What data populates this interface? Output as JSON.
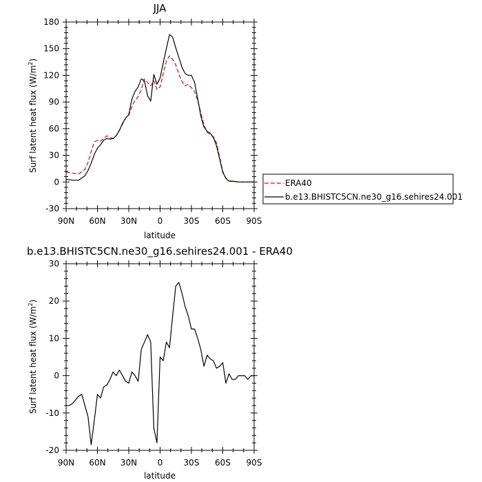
{
  "chart_data": [
    {
      "type": "line",
      "title": "JJA",
      "xlabel": "latitude",
      "ylabel_main": "Surf latent heat flux (W/m",
      "ylabel_sup": "2",
      "ylabel_tail": ")",
      "xlim": [
        90,
        -90
      ],
      "ylim": [
        -30,
        180
      ],
      "xticks": [
        90,
        60,
        30,
        0,
        -30,
        -60,
        -90
      ],
      "xtick_labels": [
        "90N",
        "60N",
        "30N",
        "0",
        "30S",
        "60S",
        "90S"
      ],
      "yticks": [
        -30,
        0,
        30,
        60,
        90,
        120,
        150,
        180
      ],
      "ytick_labels": [
        "-30",
        "0",
        "30",
        "60",
        "90",
        "120",
        "150",
        "180"
      ],
      "legend_position": "right",
      "series": [
        {
          "name": "ERA40",
          "color": "#ff0000",
          "dash": true,
          "x": [
            90,
            84,
            78,
            72,
            69,
            66,
            63,
            60,
            57,
            54,
            51,
            48,
            45,
            42,
            39,
            36,
            33,
            30,
            27,
            24,
            21,
            18,
            15,
            12,
            9,
            6,
            3,
            0,
            -3,
            -6,
            -9,
            -12,
            -15,
            -18,
            -21,
            -24,
            -27,
            -30,
            -33,
            -36,
            -39,
            -42,
            -45,
            -48,
            -51,
            -54,
            -57,
            -60,
            -63,
            -66,
            -69,
            -72,
            -75,
            -78,
            -81,
            -84,
            -87,
            -90
          ],
          "values": [
            11,
            10,
            9,
            14,
            22,
            34,
            45,
            47,
            46,
            49,
            52,
            50,
            49,
            52,
            58,
            65,
            72,
            75,
            85,
            92,
            96,
            104,
            116,
            112,
            108,
            114,
            104,
            107,
            122,
            136,
            142,
            138,
            132,
            121,
            113,
            108,
            110,
            106,
            102,
            92,
            78,
            64,
            56,
            53,
            51,
            44,
            28,
            12,
            4,
            1,
            0.5,
            0.3,
            0,
            0,
            0,
            0,
            0,
            0
          ]
        },
        {
          "name": "b.e13.BHISTC5CN.ne30_g16.sehires24.001",
          "color": "#000000",
          "dash": false,
          "x": [
            90,
            84,
            78,
            72,
            69,
            66,
            63,
            60,
            57,
            54,
            51,
            48,
            45,
            42,
            39,
            36,
            33,
            30,
            27,
            24,
            21,
            18,
            15,
            12,
            9,
            6,
            3,
            0,
            -3,
            -6,
            -9,
            -12,
            -15,
            -18,
            -21,
            -24,
            -27,
            -30,
            -33,
            -36,
            -39,
            -42,
            -45,
            -48,
            -51,
            -54,
            -57,
            -60,
            -63,
            -66,
            -69,
            -72,
            -75,
            -78,
            -81,
            -84,
            -87,
            -90
          ],
          "values": [
            3,
            2,
            2,
            7,
            13,
            21,
            31,
            38,
            42,
            47,
            49,
            48,
            49,
            52,
            58,
            66,
            72,
            76,
            93,
            102,
            107,
            116,
            114,
            97,
            91,
            121,
            110,
            117,
            134,
            150,
            166,
            163,
            151,
            140,
            129,
            122,
            120,
            120,
            112,
            94,
            74,
            62,
            57,
            55,
            50,
            41,
            26,
            11,
            4,
            1,
            1,
            0.5,
            0,
            0,
            0,
            0,
            0,
            0
          ]
        }
      ]
    },
    {
      "type": "line",
      "title": "b.e13.BHISTC5CN.ne30_g16.sehires24.001 - ERA40",
      "xlabel": "latitude",
      "ylabel_main": "Surf latent heat flux (W/m",
      "ylabel_sup": "2",
      "ylabel_tail": ")",
      "xlim": [
        90,
        -90
      ],
      "ylim": [
        -20,
        30
      ],
      "xticks": [
        90,
        60,
        30,
        0,
        -30,
        -60,
        -90
      ],
      "xtick_labels": [
        "90N",
        "60N",
        "30N",
        "0",
        "30S",
        "60S",
        "90S"
      ],
      "yticks": [
        -20,
        -10,
        0,
        10,
        20,
        30
      ],
      "ytick_labels": [
        "-20",
        "-10",
        "0",
        "10",
        "20",
        "30"
      ],
      "series": [
        {
          "name": "",
          "color": "#000000",
          "dash": false,
          "x": [
            90,
            87,
            84,
            81,
            78,
            75,
            72,
            69,
            66,
            63,
            60,
            57,
            54,
            51,
            48,
            45,
            42,
            39,
            36,
            33,
            30,
            27,
            24,
            21,
            18,
            15,
            12,
            9,
            6,
            3,
            0,
            -3,
            -6,
            -9,
            -12,
            -15,
            -18,
            -21,
            -24,
            -27,
            -30,
            -33,
            -36,
            -39,
            -42,
            -45,
            -48,
            -51,
            -54,
            -57,
            -60,
            -63,
            -66,
            -69,
            -72,
            -75,
            -78,
            -81,
            -84,
            -87,
            -90
          ],
          "values": [
            -8,
            -8,
            -7.5,
            -6.5,
            -5.5,
            -5,
            -8,
            -11,
            -18.5,
            -12,
            -5,
            -6,
            -3,
            -2.5,
            -1,
            1,
            0,
            1.5,
            0,
            -1.5,
            -2,
            1,
            0,
            -1.5,
            7,
            9,
            11,
            9,
            -14,
            -18,
            5,
            4,
            9,
            7.5,
            16,
            24,
            25,
            22,
            18.5,
            16,
            12.5,
            12.5,
            10,
            7,
            2.5,
            5.5,
            4.5,
            4,
            2,
            2.5,
            3.5,
            -2,
            0.5,
            -1,
            -1,
            0,
            0,
            0,
            -1,
            0,
            0
          ]
        }
      ]
    }
  ]
}
